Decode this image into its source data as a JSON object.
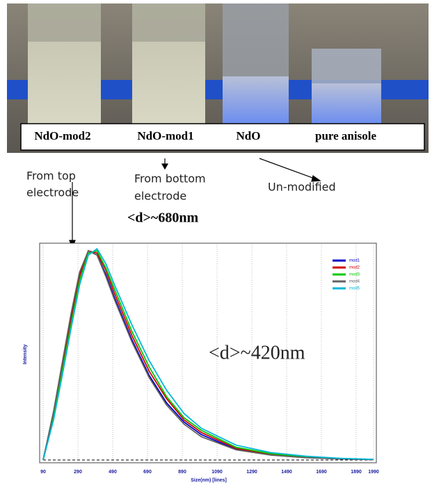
{
  "photo_labels": [
    "NdO-mod2",
    "NdO-mod1",
    "NdO",
    "pure anisole"
  ],
  "annotations": {
    "top_electrode": [
      "From top",
      "electrode"
    ],
    "bottom_electrode": [
      "From bottom",
      "electrode"
    ],
    "unmodified": "Un-modified",
    "d_680": "<d>~680nm",
    "d_420": "<d>~420nm"
  },
  "chart_data": {
    "type": "line",
    "xlabel": "Size(nm) [lines]",
    "ylabel": "Intensity",
    "x": [
      90,
      150,
      200,
      250,
      300,
      350,
      400,
      450,
      500,
      600,
      700,
      800,
      900,
      1000,
      1200,
      1400,
      1600,
      1800,
      1990
    ],
    "series": [
      {
        "name": "mod1",
        "color": "#0000c8",
        "values": [
          0,
          22,
          45,
          68,
          88,
          99,
          97,
          88,
          77,
          57,
          40,
          27,
          18,
          12,
          5,
          2.5,
          1.2,
          0.5,
          0.2
        ]
      },
      {
        "name": "mod2",
        "color": "#d00000",
        "values": [
          0,
          21,
          44,
          66,
          87,
          99,
          98,
          90,
          79,
          59,
          42,
          29,
          19,
          13,
          5.5,
          2.7,
          1.3,
          0.6,
          0.2
        ]
      },
      {
        "name": "mod3",
        "color": "#00c800",
        "values": [
          0,
          20,
          42,
          64,
          85,
          98,
          99,
          91,
          81,
          61,
          44,
          30,
          20,
          14,
          6,
          3,
          1.5,
          0.7,
          0.3
        ]
      },
      {
        "name": "mod4",
        "color": "#606060",
        "values": [
          0,
          23,
          46,
          69,
          89,
          99,
          97,
          87,
          76,
          56,
          39,
          26,
          17,
          11,
          4.8,
          2.3,
          1.1,
          0.5,
          0.2
        ]
      },
      {
        "name": "mod5",
        "color": "#00b8d8",
        "values": [
          0,
          19,
          40,
          62,
          83,
          97,
          100,
          93,
          83,
          64,
          47,
          33,
          22,
          15,
          7,
          3.5,
          1.8,
          0.8,
          0.3
        ]
      }
    ],
    "xlim": [
      90,
      1990
    ],
    "ylim": [
      0,
      100
    ],
    "xticks": [
      90,
      290,
      490,
      690,
      890,
      1090,
      1290,
      1490,
      1690,
      1890,
      1990
    ],
    "grid": true
  }
}
